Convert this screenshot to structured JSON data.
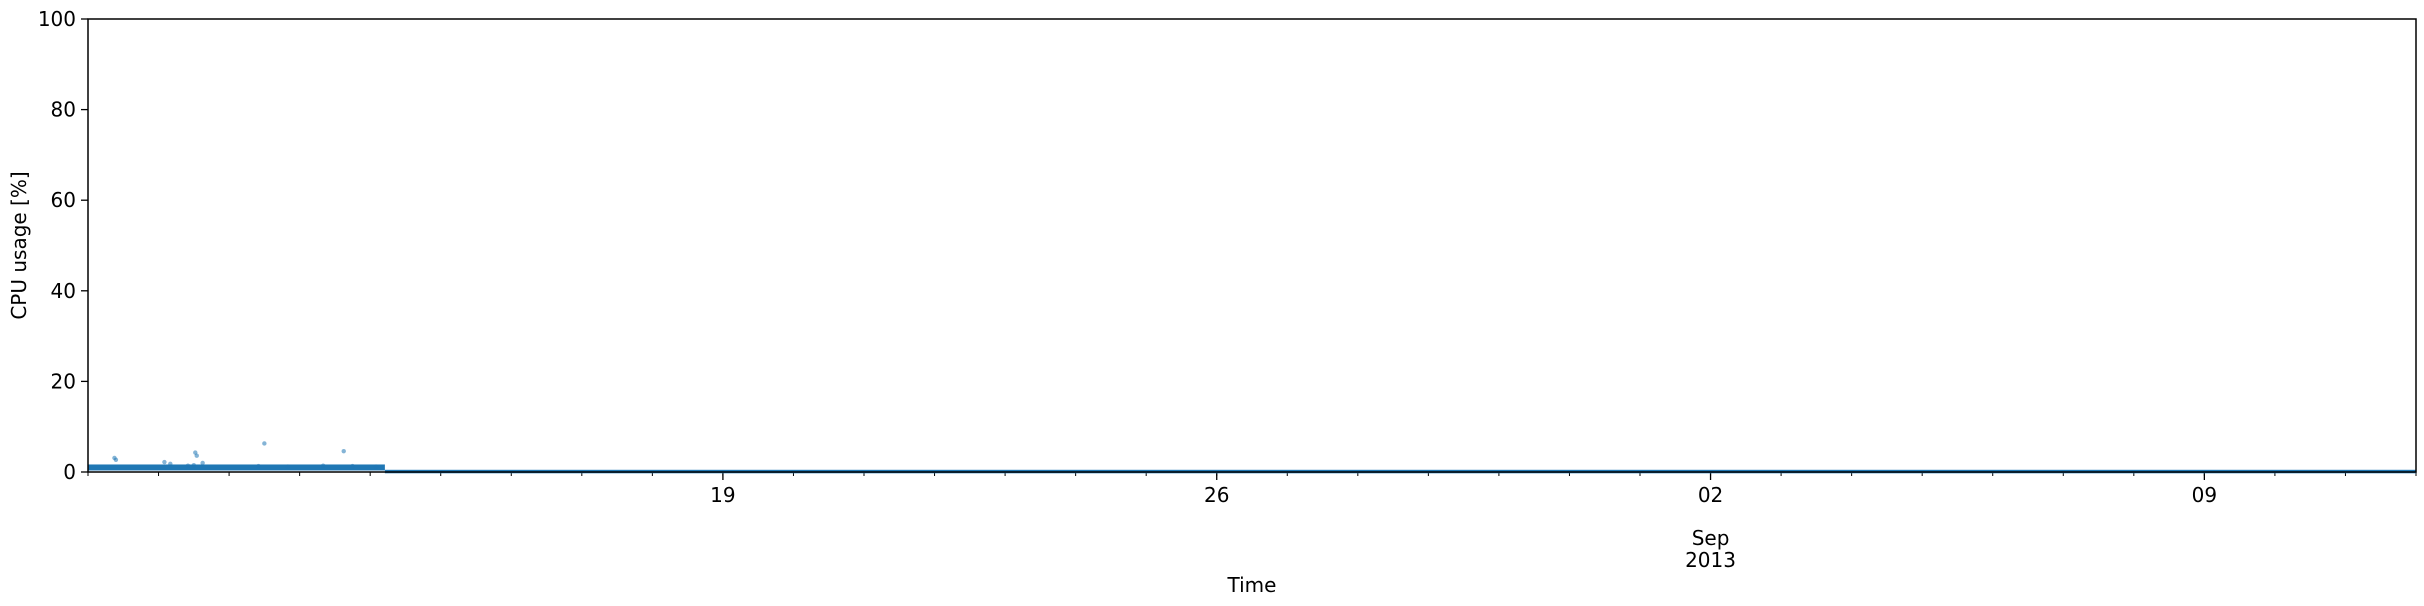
{
  "chart_data": {
    "type": "scatter",
    "title": "",
    "xlabel": "Time",
    "ylabel": "CPU usage [%]",
    "xlim": [
      "2013-08-10",
      "2013-09-12"
    ],
    "ylim": [
      0,
      100
    ],
    "yticks": [
      0,
      20,
      40,
      60,
      80,
      100
    ],
    "xticks_major": [
      {
        "date": "2013-08-19",
        "label": "19"
      },
      {
        "date": "2013-08-26",
        "label": "26"
      },
      {
        "date": "2013-09-02",
        "label": "02"
      },
      {
        "date": "2013-09-09",
        "label": "09"
      }
    ],
    "xaxis_secondary_label": {
      "date": "2013-09-02",
      "line1": "Sep",
      "line2": "2013"
    },
    "grid": false,
    "legend": "none",
    "color": "#1f77b4",
    "series": [
      {
        "baseline_segments": [
          {
            "x_start": "2013-08-10T00:00",
            "x_end": "2013-08-14T05:00",
            "y": 1.0
          },
          {
            "x_start": "2013-08-14T05:00",
            "x_end": "2013-09-12T00:00",
            "y": 0.1
          }
        ],
        "points": [
          {
            "x": "2013-08-10T09:00",
            "y": 3.1
          },
          {
            "x": "2013-08-10T09:30",
            "y": 2.7
          },
          {
            "x": "2013-08-11T02:00",
            "y": 2.2
          },
          {
            "x": "2013-08-11T04:00",
            "y": 1.8
          },
          {
            "x": "2013-08-11T10:00",
            "y": 1.4
          },
          {
            "x": "2013-08-11T12:00",
            "y": 1.5
          },
          {
            "x": "2013-08-11T12:30",
            "y": 4.3
          },
          {
            "x": "2013-08-11T13:00",
            "y": 3.6
          },
          {
            "x": "2013-08-11T15:00",
            "y": 2.0
          },
          {
            "x": "2013-08-12T12:00",
            "y": 6.3
          },
          {
            "x": "2013-08-12T10:00",
            "y": 1.3
          },
          {
            "x": "2013-08-12T20:00",
            "y": 1.2
          },
          {
            "x": "2013-08-13T08:00",
            "y": 1.4
          },
          {
            "x": "2013-08-13T15:00",
            "y": 4.6
          },
          {
            "x": "2013-08-13T18:00",
            "y": 1.3
          },
          {
            "x": "2013-08-14T02:00",
            "y": 1.2
          }
        ]
      }
    ]
  }
}
